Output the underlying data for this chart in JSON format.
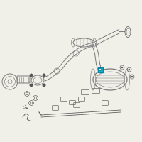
{
  "bg_color": "#f0efe8",
  "line_color": "#7a7a7a",
  "highlight_color": "#1ab0cc",
  "dark_color": "#555555",
  "lw_main": 0.7,
  "lw_thin": 0.45,
  "lw_thick": 0.9
}
